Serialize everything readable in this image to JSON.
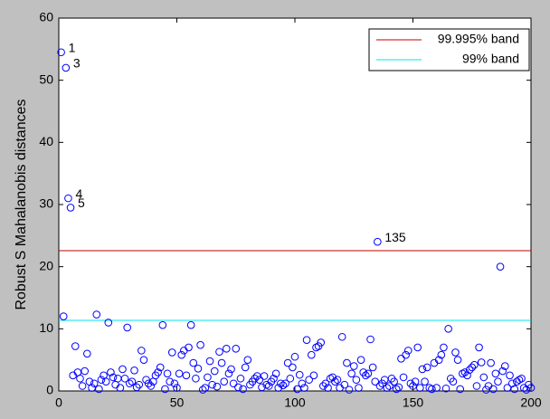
{
  "chart_data": {
    "type": "scatter",
    "y_label": "Robust S Mahalanobis distances",
    "xlim": [
      0,
      200
    ],
    "xticks": [
      0,
      50,
      100,
      150,
      200
    ],
    "ylim": [
      0,
      60
    ],
    "yticks": [
      0,
      10,
      20,
      30,
      40,
      50,
      60
    ],
    "marker_color": "#0000ff",
    "legend": "upper right",
    "x": [
      1,
      2,
      3,
      4,
      5,
      6,
      7,
      8,
      9,
      10,
      11,
      12,
      13,
      14,
      15,
      16,
      17,
      18,
      19,
      20,
      21,
      22,
      23,
      24,
      25,
      26,
      27,
      28,
      29,
      30,
      31,
      32,
      33,
      34,
      35,
      36,
      37,
      38,
      39,
      40,
      41,
      42,
      43,
      44,
      45,
      46,
      47,
      48,
      49,
      50,
      51,
      52,
      53,
      54,
      55,
      56,
      57,
      58,
      59,
      60,
      61,
      62,
      63,
      64,
      65,
      66,
      67,
      68,
      69,
      70,
      71,
      72,
      73,
      74,
      75,
      76,
      77,
      78,
      79,
      80,
      81,
      82,
      83,
      84,
      85,
      86,
      87,
      88,
      89,
      90,
      91,
      92,
      93,
      94,
      95,
      96,
      97,
      98,
      99,
      100,
      101,
      102,
      103,
      104,
      105,
      106,
      107,
      108,
      109,
      110,
      111,
      112,
      113,
      114,
      115,
      116,
      117,
      118,
      119,
      120,
      121,
      122,
      123,
      124,
      125,
      126,
      127,
      128,
      129,
      130,
      131,
      132,
      133,
      134,
      135,
      136,
      137,
      138,
      139,
      140,
      141,
      142,
      143,
      144,
      145,
      146,
      147,
      148,
      149,
      150,
      151,
      152,
      153,
      154,
      155,
      156,
      157,
      158,
      159,
      160,
      161,
      162,
      163,
      164,
      165,
      166,
      167,
      168,
      169,
      170,
      171,
      172,
      173,
      174,
      175,
      176,
      177,
      178,
      179,
      180,
      181,
      182,
      183,
      184,
      185,
      186,
      187,
      188,
      189,
      190,
      191,
      192,
      193,
      194,
      195,
      196,
      197,
      198,
      199,
      200
    ],
    "values": [
      54.5,
      12,
      52,
      31,
      29.5,
      2.5,
      7.2,
      3,
      2,
      0.8,
      3.2,
      6,
      1.5,
      0.5,
      1.2,
      12.3,
      0.3,
      1.8,
      2.5,
      1.5,
      11,
      3,
      2.2,
      1,
      2,
      0.5,
      3.5,
      2,
      10.2,
      1.2,
      1.5,
      3.3,
      0.6,
      1,
      6.5,
      5,
      1.8,
      1.2,
      0.8,
      1.5,
      2.5,
      3,
      3.8,
      10.6,
      0.3,
      2.8,
      1.5,
      6.2,
      1.2,
      0.5,
      2.8,
      5.8,
      6.5,
      2.5,
      7,
      10.6,
      4.5,
      2,
      3.6,
      7.4,
      0.2,
      0.5,
      2.2,
      4.8,
      1,
      3.2,
      0.7,
      6.3,
      4.5,
      1.5,
      6.8,
      2.8,
      3.5,
      1.2,
      6.8,
      0.6,
      2,
      0.3,
      3.8,
      5,
      1,
      1.5,
      2,
      2.4,
      1.8,
      0.6,
      2.4,
      1,
      0.8,
      1.5,
      2,
      2.8,
      0.5,
      1.2,
      0.9,
      1.2,
      4.5,
      2,
      3.8,
      5.5,
      0.3,
      2.6,
      1.2,
      0.5,
      8.2,
      1.8,
      5.8,
      2.5,
      7,
      7.2,
      7.8,
      0.8,
      1.2,
      0.5,
      2,
      2.2,
      1.5,
      1.8,
      0.5,
      8.7,
      1,
      4.5,
      0.2,
      2.8,
      4,
      1.8,
      0.5,
      5,
      3,
      2.5,
      2.8,
      8.3,
      3.8,
      1.5,
      24,
      0.8,
      1.2,
      1.8,
      0.5,
      0.8,
      2,
      1.5,
      0.3,
      0.6,
      5.2,
      2.2,
      5.8,
      6.5,
      1.2,
      0.8,
      1.5,
      7,
      0.5,
      3.5,
      1.5,
      3.8,
      0.5,
      0.3,
      4.5,
      0.5,
      5,
      5.8,
      7,
      0.4,
      10,
      2,
      1.5,
      6.2,
      5,
      0.3,
      2.8,
      3,
      2.5,
      3.4,
      3.8,
      4.2,
      0.8,
      7,
      4.6,
      2.2,
      0.2,
      0.8,
      4.5,
      0.3,
      2.8,
      1.5,
      20,
      3.2,
      4,
      0.5,
      2.5,
      1.2,
      0.3,
      1.5,
      1.8,
      2,
      0.5,
      0.2,
      1,
      0.5
    ],
    "reference_lines": [
      {
        "name": "99.995% band",
        "color": "#c00000",
        "value": 22.57
      },
      {
        "name": "99% band",
        "color": "#00e5ee",
        "value": 11.36
      }
    ],
    "annotations": [
      {
        "text": "1",
        "x": 1
      },
      {
        "text": "3",
        "x": 3
      },
      {
        "text": "4",
        "x": 4
      },
      {
        "text": "5",
        "x": 5
      },
      {
        "text": "135",
        "x": 135
      }
    ]
  }
}
